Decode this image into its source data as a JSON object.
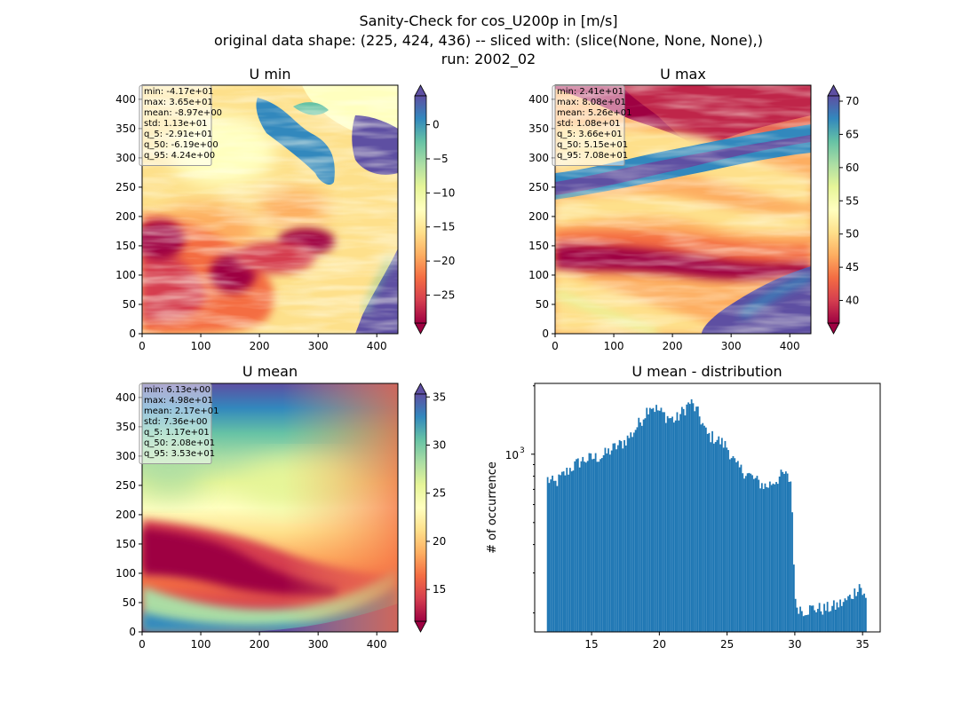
{
  "figure": {
    "title_lines": [
      "Sanity-Check for cos_U200p in [m/s]",
      "original data shape: (225, 424, 436) -- sliced with: (slice(None, None, None),)",
      "run: 2002_02"
    ]
  },
  "colors": {
    "spectral": [
      "#9e0142",
      "#d53e4f",
      "#f46d43",
      "#fdae61",
      "#fee08b",
      "#ffffbf",
      "#e6f598",
      "#abdda4",
      "#66c2a5",
      "#3288bd",
      "#5e4fa2"
    ],
    "bar": "#1f77b4"
  },
  "chart_data": [
    {
      "type": "heatmap",
      "title": "U min",
      "xticks": [
        0,
        100,
        200,
        300,
        400
      ],
      "yticks": [
        0,
        50,
        100,
        150,
        200,
        250,
        300,
        350,
        400
      ],
      "xlim": [
        0,
        436
      ],
      "ylim": [
        0,
        424
      ],
      "colorbar": {
        "min": -29.1,
        "max": 4.24,
        "ticks": [
          0,
          -5,
          -10,
          -15,
          -20,
          -25
        ],
        "tick_labels": [
          "0",
          "−5",
          "−10",
          "−15",
          "−20",
          "−25"
        ]
      },
      "stats": [
        "min: -4.17e+01",
        "max: 3.65e+01",
        "mean: -8.97e+00",
        "std: 1.13e+01",
        "q_5: -2.91e+01",
        "q_50: -6.19e+00",
        "q_95: 4.24e+00"
      ]
    },
    {
      "type": "heatmap",
      "title": "U max",
      "xticks": [
        0,
        100,
        200,
        300,
        400
      ],
      "yticks": [
        0,
        50,
        100,
        150,
        200,
        250,
        300,
        350,
        400
      ],
      "xlim": [
        0,
        436
      ],
      "ylim": [
        0,
        424
      ],
      "colorbar": {
        "min": 36.6,
        "max": 70.8,
        "ticks": [
          40,
          45,
          50,
          55,
          60,
          65,
          70
        ],
        "tick_labels": [
          "40",
          "45",
          "50",
          "55",
          "60",
          "65",
          "70"
        ]
      },
      "stats": [
        "min: 2.41e+01",
        "max: 8.08e+01",
        "mean: 5.26e+01",
        "std: 1.08e+01",
        "q_5: 3.66e+01",
        "q_50: 5.15e+01",
        "q_95: 7.08e+01"
      ]
    },
    {
      "type": "heatmap",
      "title": "U mean",
      "xticks": [
        0,
        100,
        200,
        300,
        400
      ],
      "yticks": [
        0,
        50,
        100,
        150,
        200,
        250,
        300,
        350,
        400
      ],
      "xlim": [
        0,
        436
      ],
      "ylim": [
        0,
        424
      ],
      "colorbar": {
        "min": 11.7,
        "max": 35.3,
        "ticks": [
          15,
          20,
          25,
          30,
          35
        ],
        "tick_labels": [
          "15",
          "20",
          "25",
          "30",
          "35"
        ]
      },
      "stats": [
        "min: 6.13e+00",
        "max: 4.98e+01",
        "mean: 2.17e+01",
        "std: 7.36e+00",
        "q_5: 1.17e+01",
        "q_50: 2.08e+01",
        "q_95: 3.53e+01"
      ]
    },
    {
      "type": "bar",
      "title": "U mean - distribution",
      "ylabel": "# of occurrence",
      "xlabel": "",
      "log_y": true,
      "xlim": [
        10.8,
        36.3
      ],
      "ylim": [
        165,
        2050
      ],
      "xticks": [
        15,
        20,
        25,
        30,
        35
      ],
      "ytick": {
        "value": 1000,
        "base": "10",
        "exponent": "3"
      },
      "bins": {
        "start": 11.7,
        "end": 35.3,
        "count": 200
      },
      "profile": [
        [
          11.7,
          780
        ],
        [
          12.3,
          740
        ],
        [
          13.0,
          820
        ],
        [
          13.6,
          880
        ],
        [
          14.3,
          940
        ],
        [
          15.0,
          960
        ],
        [
          15.8,
          980
        ],
        [
          16.6,
          1060
        ],
        [
          17.3,
          1120
        ],
        [
          18.0,
          1230
        ],
        [
          18.7,
          1420
        ],
        [
          19.3,
          1650
        ],
        [
          19.8,
          1580
        ],
        [
          20.5,
          1470
        ],
        [
          21.2,
          1410
        ],
        [
          21.8,
          1560
        ],
        [
          22.3,
          1700
        ],
        [
          22.9,
          1500
        ],
        [
          23.5,
          1220
        ],
        [
          24.2,
          1170
        ],
        [
          25.0,
          1080
        ],
        [
          25.7,
          880
        ],
        [
          26.4,
          830
        ],
        [
          27.2,
          760
        ],
        [
          27.9,
          720
        ],
        [
          28.6,
          770
        ],
        [
          29.2,
          820
        ],
        [
          29.7,
          760
        ],
        [
          30.0,
          220
        ],
        [
          30.6,
          205
        ],
        [
          31.4,
          210
        ],
        [
          32.2,
          208
        ],
        [
          33.0,
          214
        ],
        [
          33.8,
          226
        ],
        [
          34.4,
          246
        ],
        [
          34.8,
          270
        ],
        [
          35.0,
          245
        ],
        [
          35.3,
          225
        ]
      ]
    }
  ]
}
